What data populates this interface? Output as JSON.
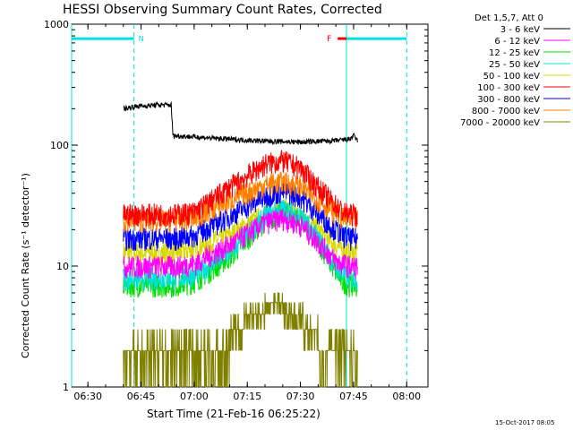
{
  "chart_data": {
    "type": "line",
    "title": "HESSI Observing Summary Count Rates, Corrected",
    "xlabel": "Start Time (21-Feb-16 06:25:22)",
    "ylabel": "Corrected Count Rate (s⁻¹ detector⁻¹)",
    "y_scale": "log",
    "ylim": [
      1,
      1000
    ],
    "xlim_minutes": [
      385.4,
      486
    ],
    "x_ticks": [
      {
        "value": 390,
        "label": "06:30"
      },
      {
        "value": 405,
        "label": "06:45"
      },
      {
        "value": 420,
        "label": "07:00"
      },
      {
        "value": 435,
        "label": "07:15"
      },
      {
        "value": 450,
        "label": "07:30"
      },
      {
        "value": 465,
        "label": "07:45"
      },
      {
        "value": 480,
        "label": "08:00"
      }
    ],
    "y_ticks": [
      {
        "value": 1,
        "label": "1"
      },
      {
        "value": 10,
        "label": "10"
      },
      {
        "value": 100,
        "label": "100"
      },
      {
        "value": 1000,
        "label": "1000"
      }
    ],
    "legend": {
      "placement": "right",
      "header": "Det 1,5,7, Att 0",
      "entries": [
        {
          "label": "3 - 6 keV",
          "color": "#000000"
        },
        {
          "label": "6 - 12 keV",
          "color": "#ff00ff"
        },
        {
          "label": "12 - 25 keV",
          "color": "#00dd00"
        },
        {
          "label": "25 - 50 keV",
          "color": "#00e0e0"
        },
        {
          "label": "50 - 100 keV",
          "color": "#d8d800"
        },
        {
          "label": "100 - 300 keV",
          "color": "#ff0000"
        },
        {
          "label": "300 - 800 keV",
          "color": "#0000ff"
        },
        {
          "label": "800 - 7000 keV",
          "color": "#ff8000"
        },
        {
          "label": "7000 - 20000 keV",
          "color": "#808000"
        }
      ]
    },
    "data_start": 400,
    "data_end": 466.2,
    "series": [
      {
        "label": "3 - 6 keV",
        "color": "#000000",
        "x": [
          400,
          404,
          410,
          413.5,
          414,
          418,
          430,
          440,
          450,
          460,
          464,
          465,
          466
        ],
        "y": [
          200,
          210,
          215,
          215,
          120,
          118,
          112,
          108,
          106,
          109,
          112,
          120,
          110
        ]
      },
      {
        "label": "6 - 12 keV",
        "color": "#ff00ff",
        "x": [
          400,
          415,
          420,
          430,
          440,
          445,
          450,
          455,
          460,
          462,
          464,
          466
        ],
        "y": [
          10,
          10,
          10.5,
          15,
          23,
          25,
          22,
          16,
          11,
          10.5,
          10,
          10
        ]
      },
      {
        "label": "12 - 25 keV",
        "color": "#00dd00",
        "x": [
          400,
          415,
          420,
          430,
          440,
          445,
          450,
          455,
          460,
          462,
          464,
          466
        ],
        "y": [
          7,
          7,
          7.5,
          12,
          24,
          28,
          25,
          16,
          9,
          7.5,
          7,
          7
        ]
      },
      {
        "label": "25 - 50 keV",
        "color": "#00e0e0",
        "x": [
          400,
          415,
          420,
          430,
          440,
          445,
          450,
          455,
          460,
          462,
          464,
          466
        ],
        "y": [
          8,
          8,
          8.5,
          13,
          26,
          30,
          26,
          17,
          10,
          8.5,
          8,
          8
        ]
      },
      {
        "label": "50 - 100 keV",
        "color": "#d8d800",
        "x": [
          400,
          415,
          420,
          430,
          440,
          445,
          450,
          455,
          460,
          462,
          464,
          466
        ],
        "y": [
          13,
          13,
          14,
          18,
          27,
          30,
          27,
          20,
          15,
          13.5,
          13,
          13
        ]
      },
      {
        "label": "100 - 300 keV",
        "color": "#ff0000",
        "x": [
          400,
          415,
          420,
          430,
          440,
          445,
          450,
          455,
          460,
          462,
          464,
          466
        ],
        "y": [
          27,
          27,
          28,
          45,
          70,
          75,
          65,
          45,
          32,
          28,
          27,
          27
        ]
      },
      {
        "label": "300 - 800 keV",
        "color": "#0000ff",
        "x": [
          400,
          415,
          420,
          430,
          440,
          445,
          450,
          455,
          460,
          462,
          464,
          466
        ],
        "y": [
          17,
          17,
          18,
          26,
          38,
          42,
          38,
          27,
          20,
          18,
          17,
          17
        ]
      },
      {
        "label": "800 - 7000 keV",
        "color": "#ff8000",
        "x": [
          400,
          415,
          420,
          430,
          440,
          445,
          450,
          455,
          460,
          462,
          464,
          466
        ],
        "y": [
          24,
          24,
          25,
          35,
          47,
          50,
          46,
          35,
          28,
          25,
          24,
          24
        ]
      },
      {
        "label": "7000 - 20000 keV",
        "color": "#808000",
        "x": [
          400,
          424,
          430,
          435,
          440,
          445,
          450,
          455,
          460,
          466
        ],
        "y": [
          1.5,
          1.5,
          2.5,
          3.8,
          4.5,
          4.5,
          3.8,
          2.5,
          1.5,
          1.5
        ]
      }
    ],
    "night_intervals": [
      {
        "start": 385.4,
        "end": 403,
        "label": "N"
      },
      {
        "start": 463,
        "end": 480,
        "label": ""
      }
    ],
    "flare_marker": {
      "label": "F",
      "start": 460.5,
      "end": 463,
      "value": 760
    },
    "footer_timestamp": "15-Oct-2017 08:05"
  }
}
